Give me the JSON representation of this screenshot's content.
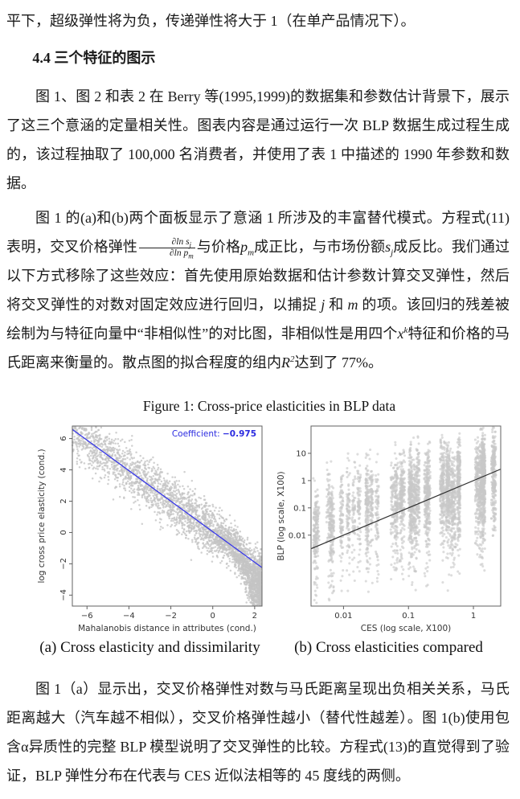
{
  "content": {
    "p0": [
      {
        "t": "平下，超级弹性将为负，传递弹性将大于 1（在单产品情况下）。"
      }
    ],
    "heading": "4.4 三个特征的图示",
    "p1": [
      {
        "t": "图 1、图 2 和表 2 在 Berry 等(1995,1999)的数据集和参数估计背景下，展示了这三个意涵的定量相关性。图表内容是通过运行一次 BLP 数据生成过程生成的，该过程抽取了 100,000 名消费者，并使用了表 1 中描述的 1990 年参数和数据。"
      }
    ],
    "p2": [
      {
        "t": "图 1 的(a)和(b)两个面板显示了意涵 1 所涉及的丰富替代模式。方程式(11)表明，交叉价格弹性"
      },
      {
        "frac": {
          "num": "∂ln s_j",
          "den": "∂ln p_m"
        }
      },
      {
        "t": "与价格"
      },
      {
        "v": "p",
        "sub": "m"
      },
      {
        "t": "成正比，与市场份额"
      },
      {
        "v": "s",
        "sub": "j"
      },
      {
        "t": "成反比。我们通过以下方式移除了这些效应：首先使用原始数据和估计参数计算交叉弹性，然后将交叉弹性的对数对固定效应进行回归，以捕捉 "
      },
      {
        "i": "j"
      },
      {
        "t": " 和 "
      },
      {
        "i": "m"
      },
      {
        "t": " 的项。该回归的残差被绘制为与特征向量中“非相似性”的对比图，非相似性是用四个"
      },
      {
        "v": "x",
        "sup": "k"
      },
      {
        "t": "特征和价格的马氏距离来衡量的。散点图的拟合程度的组内"
      },
      {
        "v": "R",
        "sup": "2"
      },
      {
        "t": "达到了 77%。"
      }
    ],
    "p3": [
      {
        "t": "图 1（a）显示出，交叉价格弹性对数与马氏距离呈现出负相关关系，马氏距离越大（汽车越不相似），交叉价格弹性越小（替代性越差）。图 1(b)使用包含α异质性的完整 BLP 模型说明了交叉弹性的比较。方程式(13)的直觉得到了验证，BLP 弹性分布在代表与 CES 近似法相等的 45 度线的两侧。"
      }
    ]
  },
  "figure": {
    "title": "Figure 1: Cross-price elasticities in BLP data"
  },
  "chart_data": [
    {
      "type": "scatter",
      "panel": "a",
      "caption": "(a) Cross elasticity and dissimilarity",
      "xlabel": "Mahalanobis distance in attributes (cond.)",
      "ylabel": "log cross price elasticity (cond.)",
      "xlim": [
        -6.7,
        2.35
      ],
      "ylim": [
        -4.7,
        6.8
      ],
      "xticks": [
        -6,
        -4,
        -2,
        0,
        2
      ],
      "yticks": [
        6,
        4,
        2,
        0,
        -2,
        -4
      ],
      "grid": false,
      "annotation": {
        "label": "Coefficient:",
        "value": "−0.975",
        "color": "#2a2ae0"
      },
      "regression_line": {
        "slope": -0.975,
        "intercept": 0.05,
        "color": "#3838e8"
      },
      "points": {
        "n": 3800,
        "seed": 42,
        "color": "#c4c4c4",
        "radius": 1.25,
        "opacity": 0.78,
        "model": "x skewed toward right edge over [-6.7,2.3]; y = 0.05 - 0.975x + N(0,0.8); extra downward bend for x>0.7"
      }
    },
    {
      "type": "scatter",
      "panel": "b",
      "caption": "(b) Cross elasticities compared",
      "xlabel": "CES (log scale, X100)",
      "ylabel": "BLP (log scale, X100)",
      "xscale": "log",
      "yscale": "log",
      "xlim_log10": [
        -2.5,
        0.42
      ],
      "ylim_log10": [
        -4.6,
        2.0
      ],
      "xticks": [
        0.01,
        0.1,
        1
      ],
      "yticks": [
        10,
        1,
        0.1,
        0.01
      ],
      "grid": false,
      "identity_line": {
        "slope": 1,
        "intercept": 0,
        "color": "#303030",
        "note": "45-degree line, BLP = CES"
      },
      "points": {
        "strips": 44,
        "seed": 7,
        "color": "#c8c8c8",
        "radius": 1.55,
        "opacity": 0.62,
        "model": "44 vertical product strips at log-uniform x; strip center log10(y) = 0.78*log10(x)+0.3; spread sd 0.7 with sparse lower tails"
      }
    }
  ]
}
